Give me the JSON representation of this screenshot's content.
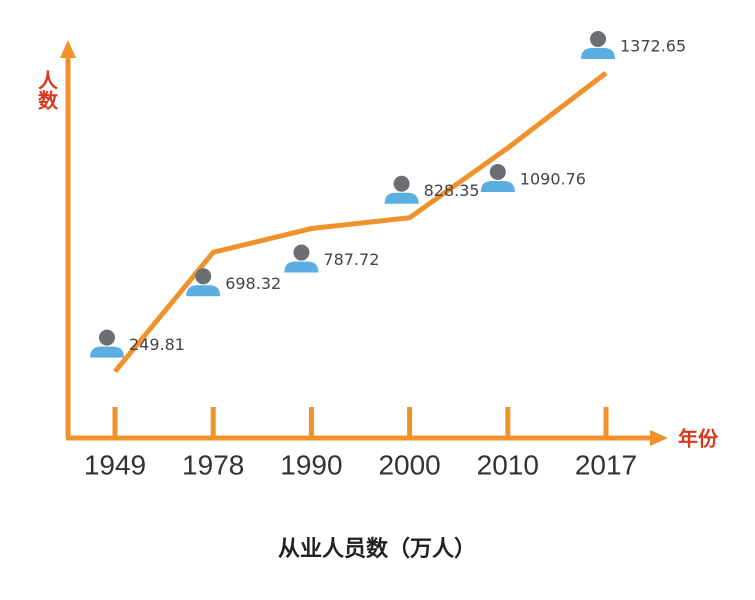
{
  "chart_data": {
    "type": "line",
    "title": "从业人员数（万人）",
    "y_label": "人数",
    "x_label": "年份",
    "categories": [
      "1949",
      "1978",
      "1990",
      "2000",
      "2010",
      "2017"
    ],
    "values": [
      249.81,
      698.32,
      787.72,
      828.35,
      1090.76,
      1372.65
    ],
    "color": "#f0922b"
  }
}
